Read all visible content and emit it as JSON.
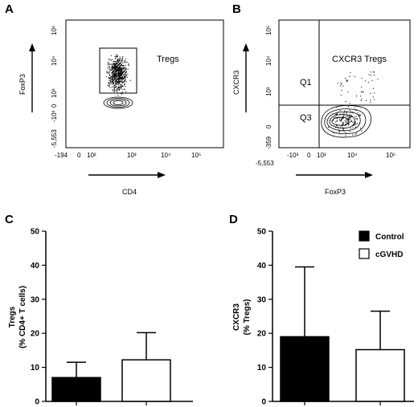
{
  "panels": {
    "A": {
      "letter": "A",
      "xlabel": "CD4",
      "ylabel": "FoxP3",
      "x_ticks": [
        "-194",
        "0",
        "10²",
        "10³",
        "10⁴",
        "10⁵"
      ],
      "y_ticks": [
        "10⁵",
        "10⁴",
        "10³",
        "0",
        "-10³",
        "-5,553"
      ],
      "gate_label": "Tregs"
    },
    "B": {
      "letter": "B",
      "xlabel": "FoxP3",
      "ylabel": "CXCR3",
      "x_ticks": [
        "-5,553",
        "-10³",
        "0",
        "10³",
        "10⁴",
        "10⁵"
      ],
      "y_ticks": [
        "10⁵",
        "10⁴",
        "10³",
        "0",
        "-359"
      ],
      "gate_label": "CXCR3 Tregs",
      "quadrants": [
        "Q1",
        "Q3"
      ]
    }
  },
  "legend": {
    "control_label": "Control",
    "cgvhd_label": "cGVHD",
    "control_color": "#000000",
    "cgvhd_color": "#ffffff"
  },
  "chart_data": [
    {
      "panel": "C",
      "type": "bar",
      "categories": [
        "Control",
        "cGVHD"
      ],
      "values": [
        7,
        12.2
      ],
      "errors": [
        4.5,
        8
      ],
      "ylabel": [
        "Tregs",
        "(% CD4+ T cells)"
      ],
      "ylim": [
        0,
        50
      ],
      "y_ticks": [
        0,
        10,
        20,
        30,
        40,
        50
      ]
    },
    {
      "panel": "D",
      "type": "bar",
      "categories": [
        "Control",
        "cGVHD"
      ],
      "values": [
        19,
        15.2
      ],
      "errors": [
        20.5,
        11.3
      ],
      "ylabel": [
        "CXCR3",
        "(% Tregs)"
      ],
      "ylim": [
        0,
        50
      ],
      "y_ticks": [
        0,
        10,
        20,
        30,
        40,
        50
      ]
    }
  ]
}
